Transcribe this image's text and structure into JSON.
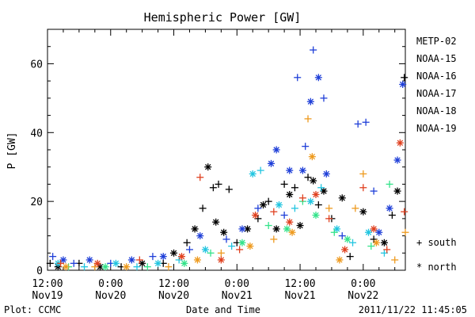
{
  "chart_data": {
    "type": "scatter",
    "title": "Hemispheric Power [GW]",
    "ylabel": "P [GW]",
    "xlabel": "Date and Time",
    "ylim": [
      0,
      70
    ],
    "yticks": [
      0,
      20,
      40,
      60
    ],
    "xlim": [
      0,
      68
    ],
    "xticks": [
      {
        "x": 0,
        "time": "12:00",
        "date": "Nov19"
      },
      {
        "x": 12,
        "time": "0:00",
        "date": "Nov20"
      },
      {
        "x": 24,
        "time": "12:00",
        "date": "Nov20"
      },
      {
        "x": 36,
        "time": "0:00",
        "date": "Nov21"
      },
      {
        "x": 48,
        "time": "12:00",
        "date": "Nov21"
      },
      {
        "x": 60,
        "time": "0:00",
        "date": "Nov22"
      }
    ],
    "legend_position": "right",
    "series": [
      {
        "name": "METP-02",
        "color": "#000000"
      },
      {
        "name": "NOAA-15",
        "color": "#1f3fd8"
      },
      {
        "name": "NOAA-16",
        "color": "#22c5e0"
      },
      {
        "name": "NOAA-17",
        "color": "#33e38a"
      },
      {
        "name": "NOAA-18",
        "color": "#ee9a1e"
      },
      {
        "name": "NOAA-19",
        "color": "#e0401f"
      }
    ],
    "hemisphere_markers": [
      {
        "symbol": "+",
        "label": "south"
      },
      {
        "symbol": "*",
        "label": "north"
      }
    ],
    "points": [
      {
        "s": 0,
        "h": "s",
        "x": 0.5,
        "y": 2
      },
      {
        "s": 0,
        "h": "n",
        "x": 2,
        "y": 1
      },
      {
        "s": 0,
        "h": "s",
        "x": 6,
        "y": 2
      },
      {
        "s": 0,
        "h": "n",
        "x": 10,
        "y": 1
      },
      {
        "s": 0,
        "h": "s",
        "x": 14,
        "y": 1
      },
      {
        "s": 0,
        "h": "n",
        "x": 18,
        "y": 2
      },
      {
        "s": 0,
        "h": "s",
        "x": 22,
        "y": 2
      },
      {
        "s": 0,
        "h": "n",
        "x": 24,
        "y": 5
      },
      {
        "s": 0,
        "h": "s",
        "x": 26.5,
        "y": 8
      },
      {
        "s": 0,
        "h": "n",
        "x": 28,
        "y": 12
      },
      {
        "s": 0,
        "h": "s",
        "x": 29.5,
        "y": 18
      },
      {
        "s": 0,
        "h": "n",
        "x": 30.5,
        "y": 30
      },
      {
        "s": 0,
        "h": "s",
        "x": 31.5,
        "y": 24
      },
      {
        "s": 0,
        "h": "n",
        "x": 32,
        "y": 14
      },
      {
        "s": 0,
        "h": "s",
        "x": 32.5,
        "y": 25
      },
      {
        "s": 0,
        "h": "s",
        "x": 34.5,
        "y": 23.5
      },
      {
        "s": 0,
        "h": "n",
        "x": 33.5,
        "y": 11
      },
      {
        "s": 0,
        "h": "s",
        "x": 36,
        "y": 8
      },
      {
        "s": 0,
        "h": "n",
        "x": 38,
        "y": 12
      },
      {
        "s": 0,
        "h": "s",
        "x": 40,
        "y": 15
      },
      {
        "s": 0,
        "h": "n",
        "x": 41,
        "y": 19
      },
      {
        "s": 0,
        "h": "s",
        "x": 42,
        "y": 20
      },
      {
        "s": 0,
        "h": "n",
        "x": 43.5,
        "y": 12
      },
      {
        "s": 0,
        "h": "s",
        "x": 45,
        "y": 25
      },
      {
        "s": 0,
        "h": "n",
        "x": 46,
        "y": 22
      },
      {
        "s": 0,
        "h": "s",
        "x": 47,
        "y": 24
      },
      {
        "s": 0,
        "h": "n",
        "x": 48,
        "y": 13
      },
      {
        "s": 0,
        "h": "s",
        "x": 49.5,
        "y": 27
      },
      {
        "s": 0,
        "h": "n",
        "x": 50.5,
        "y": 26
      },
      {
        "s": 0,
        "h": "s",
        "x": 51.5,
        "y": 19
      },
      {
        "s": 0,
        "h": "n",
        "x": 52.5,
        "y": 23
      },
      {
        "s": 0,
        "h": "s",
        "x": 54,
        "y": 15
      },
      {
        "s": 0,
        "h": "n",
        "x": 56,
        "y": 21
      },
      {
        "s": 0,
        "h": "s",
        "x": 57.5,
        "y": 4
      },
      {
        "s": 0,
        "h": "n",
        "x": 60,
        "y": 17
      },
      {
        "s": 0,
        "h": "s",
        "x": 62,
        "y": 9
      },
      {
        "s": 0,
        "h": "n",
        "x": 64,
        "y": 8
      },
      {
        "s": 0,
        "h": "s",
        "x": 65.5,
        "y": 16
      },
      {
        "s": 0,
        "h": "n",
        "x": 66.5,
        "y": 23
      },
      {
        "s": 0,
        "h": "s",
        "x": 67.8,
        "y": 56
      },
      {
        "s": 1,
        "h": "s",
        "x": 1,
        "y": 4
      },
      {
        "s": 1,
        "h": "n",
        "x": 3,
        "y": 3
      },
      {
        "s": 1,
        "h": "s",
        "x": 5,
        "y": 2
      },
      {
        "s": 1,
        "h": "n",
        "x": 8,
        "y": 3
      },
      {
        "s": 1,
        "h": "s",
        "x": 12,
        "y": 2
      },
      {
        "s": 1,
        "h": "n",
        "x": 16,
        "y": 3
      },
      {
        "s": 1,
        "h": "s",
        "x": 20,
        "y": 4
      },
      {
        "s": 1,
        "h": "n",
        "x": 22,
        "y": 4
      },
      {
        "s": 1,
        "h": "s",
        "x": 27,
        "y": 6
      },
      {
        "s": 1,
        "h": "n",
        "x": 29,
        "y": 10
      },
      {
        "s": 1,
        "h": "s",
        "x": 34,
        "y": 9
      },
      {
        "s": 1,
        "h": "n",
        "x": 37,
        "y": 12
      },
      {
        "s": 1,
        "h": "s",
        "x": 40,
        "y": 18
      },
      {
        "s": 1,
        "h": "n",
        "x": 42.5,
        "y": 31
      },
      {
        "s": 1,
        "h": "n",
        "x": 43.5,
        "y": 35
      },
      {
        "s": 1,
        "h": "s",
        "x": 45,
        "y": 16
      },
      {
        "s": 1,
        "h": "n",
        "x": 46,
        "y": 29
      },
      {
        "s": 1,
        "h": "s",
        "x": 47.5,
        "y": 56
      },
      {
        "s": 1,
        "h": "n",
        "x": 48.5,
        "y": 29
      },
      {
        "s": 1,
        "h": "s",
        "x": 49,
        "y": 36
      },
      {
        "s": 1,
        "h": "n",
        "x": 50,
        "y": 49
      },
      {
        "s": 1,
        "h": "s",
        "x": 50.5,
        "y": 64
      },
      {
        "s": 1,
        "h": "n",
        "x": 51.5,
        "y": 56
      },
      {
        "s": 1,
        "h": "s",
        "x": 52.5,
        "y": 50
      },
      {
        "s": 1,
        "h": "n",
        "x": 53,
        "y": 28
      },
      {
        "s": 1,
        "h": "s",
        "x": 56,
        "y": 10
      },
      {
        "s": 1,
        "h": "s",
        "x": 59,
        "y": 42.5
      },
      {
        "s": 1,
        "h": "s",
        "x": 60.5,
        "y": 43
      },
      {
        "s": 1,
        "h": "s",
        "x": 62,
        "y": 23
      },
      {
        "s": 1,
        "h": "n",
        "x": 63,
        "y": 11
      },
      {
        "s": 1,
        "h": "n",
        "x": 65,
        "y": 18
      },
      {
        "s": 1,
        "h": "n",
        "x": 66.5,
        "y": 32
      },
      {
        "s": 1,
        "h": "n",
        "x": 67.5,
        "y": 54
      },
      {
        "s": 2,
        "h": "n",
        "x": 2,
        "y": 2
      },
      {
        "s": 2,
        "h": "s",
        "x": 7,
        "y": 1
      },
      {
        "s": 2,
        "h": "n",
        "x": 13,
        "y": 2
      },
      {
        "s": 2,
        "h": "s",
        "x": 17,
        "y": 1
      },
      {
        "s": 2,
        "h": "n",
        "x": 21,
        "y": 2
      },
      {
        "s": 2,
        "h": "s",
        "x": 25,
        "y": 3
      },
      {
        "s": 2,
        "h": "n",
        "x": 30,
        "y": 6
      },
      {
        "s": 2,
        "h": "s",
        "x": 35,
        "y": 7
      },
      {
        "s": 2,
        "h": "n",
        "x": 39,
        "y": 28
      },
      {
        "s": 2,
        "h": "s",
        "x": 40.5,
        "y": 29
      },
      {
        "s": 2,
        "h": "n",
        "x": 44,
        "y": 19
      },
      {
        "s": 2,
        "h": "s",
        "x": 47,
        "y": 18
      },
      {
        "s": 2,
        "h": "n",
        "x": 50,
        "y": 20
      },
      {
        "s": 2,
        "h": "s",
        "x": 52,
        "y": 24
      },
      {
        "s": 2,
        "h": "n",
        "x": 55,
        "y": 12
      },
      {
        "s": 2,
        "h": "s",
        "x": 58,
        "y": 8
      },
      {
        "s": 2,
        "h": "n",
        "x": 61,
        "y": 11
      },
      {
        "s": 2,
        "h": "s",
        "x": 64,
        "y": 5
      },
      {
        "s": 3,
        "h": "s",
        "x": 4,
        "y": 1
      },
      {
        "s": 3,
        "h": "n",
        "x": 11,
        "y": 1
      },
      {
        "s": 3,
        "h": "s",
        "x": 19,
        "y": 1
      },
      {
        "s": 3,
        "h": "n",
        "x": 26,
        "y": 2
      },
      {
        "s": 3,
        "h": "s",
        "x": 31,
        "y": 5
      },
      {
        "s": 3,
        "h": "n",
        "x": 37,
        "y": 8
      },
      {
        "s": 3,
        "h": "s",
        "x": 42,
        "y": 13
      },
      {
        "s": 3,
        "h": "n",
        "x": 45.5,
        "y": 12
      },
      {
        "s": 3,
        "h": "s",
        "x": 48.5,
        "y": 20
      },
      {
        "s": 3,
        "h": "n",
        "x": 51,
        "y": 16
      },
      {
        "s": 3,
        "h": "s",
        "x": 54.5,
        "y": 11
      },
      {
        "s": 3,
        "h": "n",
        "x": 57,
        "y": 9
      },
      {
        "s": 3,
        "h": "s",
        "x": 61.5,
        "y": 7
      },
      {
        "s": 3,
        "h": "s",
        "x": 65,
        "y": 25
      },
      {
        "s": 4,
        "h": "n",
        "x": 3.5,
        "y": 1
      },
      {
        "s": 4,
        "h": "s",
        "x": 9,
        "y": 1
      },
      {
        "s": 4,
        "h": "n",
        "x": 15,
        "y": 1
      },
      {
        "s": 4,
        "h": "s",
        "x": 23,
        "y": 1
      },
      {
        "s": 4,
        "h": "n",
        "x": 28.5,
        "y": 3
      },
      {
        "s": 4,
        "h": "s",
        "x": 33,
        "y": 5
      },
      {
        "s": 4,
        "h": "n",
        "x": 38.5,
        "y": 7
      },
      {
        "s": 4,
        "h": "s",
        "x": 43,
        "y": 9
      },
      {
        "s": 4,
        "h": "n",
        "x": 46.5,
        "y": 11
      },
      {
        "s": 4,
        "h": "s",
        "x": 49.5,
        "y": 44
      },
      {
        "s": 4,
        "h": "n",
        "x": 50.3,
        "y": 33
      },
      {
        "s": 4,
        "h": "s",
        "x": 53.5,
        "y": 18
      },
      {
        "s": 4,
        "h": "n",
        "x": 55.5,
        "y": 3
      },
      {
        "s": 4,
        "h": "s",
        "x": 58.5,
        "y": 18
      },
      {
        "s": 4,
        "h": "s",
        "x": 60,
        "y": 28
      },
      {
        "s": 4,
        "h": "n",
        "x": 62.5,
        "y": 8
      },
      {
        "s": 4,
        "h": "s",
        "x": 66,
        "y": 3
      },
      {
        "s": 4,
        "h": "s",
        "x": 68,
        "y": 11
      },
      {
        "s": 5,
        "h": "s",
        "x": 2.5,
        "y": 2
      },
      {
        "s": 5,
        "h": "n",
        "x": 9.5,
        "y": 2
      },
      {
        "s": 5,
        "h": "s",
        "x": 17.5,
        "y": 3
      },
      {
        "s": 5,
        "h": "n",
        "x": 25.5,
        "y": 4
      },
      {
        "s": 5,
        "h": "s",
        "x": 29,
        "y": 27
      },
      {
        "s": 5,
        "h": "n",
        "x": 33,
        "y": 3
      },
      {
        "s": 5,
        "h": "s",
        "x": 36.5,
        "y": 6
      },
      {
        "s": 5,
        "h": "n",
        "x": 39.5,
        "y": 16
      },
      {
        "s": 5,
        "h": "s",
        "x": 43,
        "y": 17
      },
      {
        "s": 5,
        "h": "n",
        "x": 46,
        "y": 14
      },
      {
        "s": 5,
        "h": "s",
        "x": 48.5,
        "y": 21
      },
      {
        "s": 5,
        "h": "n",
        "x": 51,
        "y": 22
      },
      {
        "s": 5,
        "h": "s",
        "x": 53.5,
        "y": 15
      },
      {
        "s": 5,
        "h": "n",
        "x": 56.5,
        "y": 6
      },
      {
        "s": 5,
        "h": "s",
        "x": 60,
        "y": 24
      },
      {
        "s": 5,
        "h": "n",
        "x": 62,
        "y": 12
      },
      {
        "s": 5,
        "h": "s",
        "x": 64.5,
        "y": 6
      },
      {
        "s": 5,
        "h": "n",
        "x": 67,
        "y": 37
      },
      {
        "s": 5,
        "h": "s",
        "x": 67.8,
        "y": 17
      }
    ]
  },
  "footer": {
    "left": "Plot: CCMC",
    "center": "Date and Time",
    "right": "2011/11/22 11:45:05"
  }
}
